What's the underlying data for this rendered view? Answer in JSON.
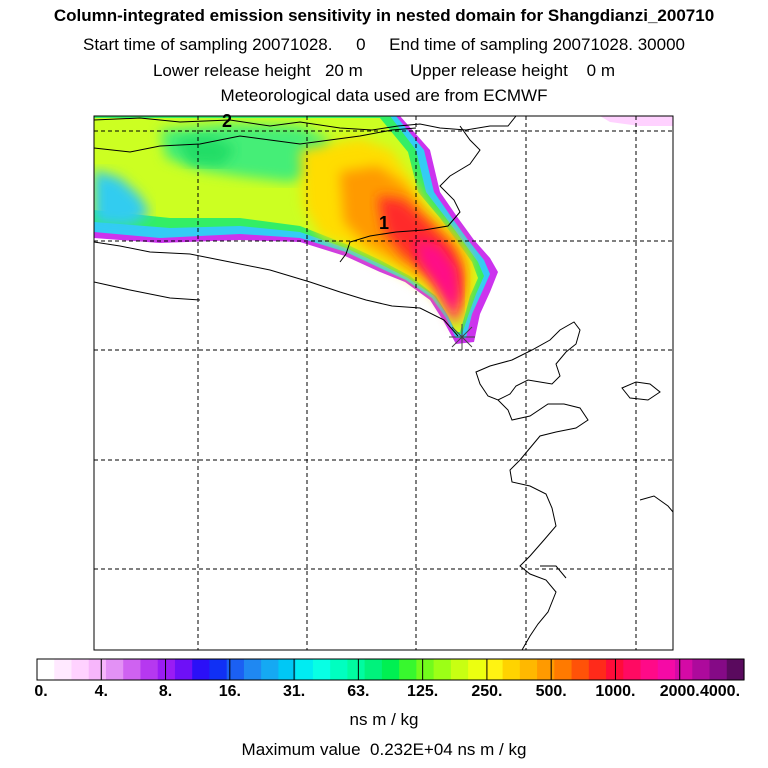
{
  "header": {
    "title": "Column-integrated emission sensitivity in nested domain for Shangdianzi_200710",
    "sampling": "Start time of sampling 20071028.     0     End time of sampling 20071028. 30000",
    "release": "Lower release height   20 m          Upper release height    0 m",
    "met": "Meteorological data used are from ECMWF"
  },
  "map": {
    "labels": [
      "1",
      "2"
    ],
    "marker": "receptor-star"
  },
  "legend": {
    "ticks": [
      "0.",
      "4.",
      "8.",
      "16.",
      "31.",
      "63.",
      "125.",
      "250.",
      "500.",
      "1000.",
      "2000.",
      "4000."
    ],
    "unit": "ns m / kg",
    "colors": [
      "#ffffff",
      "#ffe9ff",
      "#ffd2ff",
      "#f7b6fb",
      "#e391f5",
      "#cf62f1",
      "#b638f0",
      "#9a1cf4",
      "#6e10f7",
      "#2b10f7",
      "#1030f5",
      "#1b60f3",
      "#1f88f2",
      "#15a9f3",
      "#00c8f5",
      "#00ecf2",
      "#08ffe4",
      "#00ffc0",
      "#00fca0",
      "#00f27c",
      "#00f052",
      "#38f82e",
      "#72fb1c",
      "#9cff16",
      "#c8ff12",
      "#ecff10",
      "#fff312",
      "#ffd300",
      "#ffb800",
      "#ff9a00",
      "#ff7a00",
      "#ff5208",
      "#ff2a1a",
      "#ff0c3a",
      "#ff0a62",
      "#ff0a88",
      "#f50aa6",
      "#d40aa6",
      "#ad0a9c",
      "#850a86",
      "#5a0a5e"
    ]
  },
  "footer": {
    "max_value": "Maximum value  0.232E+04 ns m / kg"
  }
}
